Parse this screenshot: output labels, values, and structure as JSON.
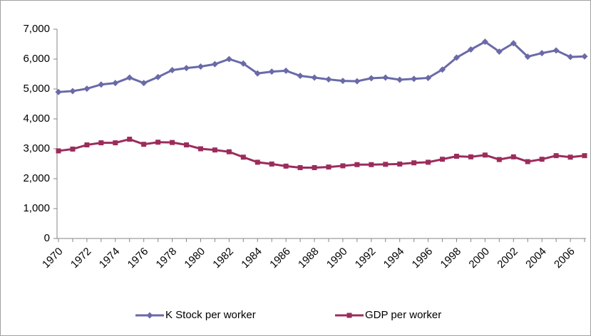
{
  "chart_data": {
    "type": "line",
    "categories": [
      "1970",
      null,
      "1972",
      null,
      "1974",
      null,
      "1976",
      null,
      "1978",
      null,
      "1980",
      null,
      "1982",
      null,
      "1984",
      null,
      "1986",
      null,
      "1988",
      null,
      "1990",
      null,
      "1992",
      null,
      "1994",
      null,
      "1996",
      null,
      "1998",
      null,
      "2000",
      null,
      "2002",
      null,
      "2004",
      null,
      "2006",
      null
    ],
    "series": [
      {
        "name": "K Stock per worker",
        "color": "#6a6aa8",
        "marker": "diamond",
        "values": [
          4900,
          4930,
          5010,
          5150,
          5200,
          5380,
          5200,
          5400,
          5630,
          5700,
          5750,
          5830,
          6000,
          5850,
          5520,
          5580,
          5610,
          5440,
          5380,
          5320,
          5270,
          5260,
          5360,
          5380,
          5310,
          5340,
          5370,
          5650,
          6050,
          6320,
          6580,
          6250,
          6530,
          6080,
          6200,
          6290,
          6070,
          6090
        ]
      },
      {
        "name": "GDP per worker",
        "color": "#9b2c5c",
        "marker": "square",
        "values": [
          2930,
          2990,
          3130,
          3200,
          3200,
          3320,
          3150,
          3220,
          3210,
          3130,
          3000,
          2960,
          2900,
          2720,
          2550,
          2490,
          2420,
          2370,
          2370,
          2390,
          2430,
          2470,
          2470,
          2480,
          2490,
          2530,
          2550,
          2650,
          2750,
          2730,
          2790,
          2640,
          2730,
          2570,
          2650,
          2770,
          2720,
          2770
        ]
      }
    ],
    "ylim": [
      0,
      7000
    ],
    "yticks": [
      0,
      {
        "value": 1000,
        "label": "1,000"
      },
      {
        "value": 2000,
        "label": "2,000"
      },
      {
        "value": 3000,
        "label": "3,000"
      },
      {
        "value": 4000,
        "label": "4,000"
      },
      {
        "value": 5000,
        "label": "5,000"
      },
      {
        "value": 6000,
        "label": "6,000"
      },
      {
        "value": 7000,
        "label": "7,000"
      }
    ],
    "grid": false,
    "legend": "bottom"
  }
}
